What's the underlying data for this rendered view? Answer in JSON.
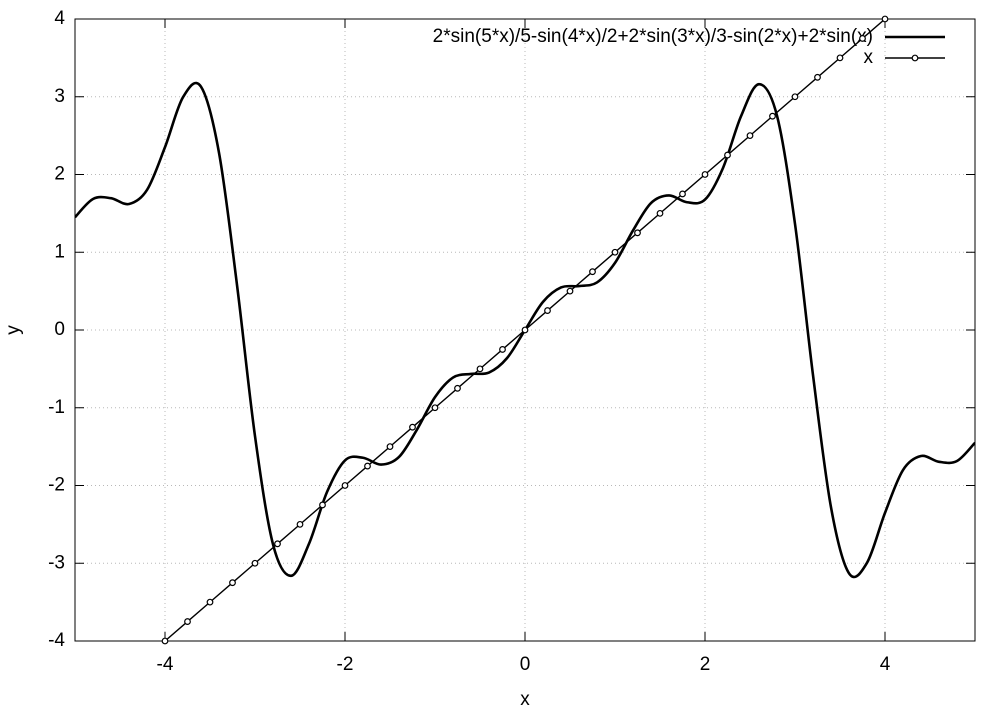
{
  "chart_data": {
    "type": "line",
    "xlabel": "x",
    "ylabel": "y",
    "xlim": [
      -5,
      5
    ],
    "ylim": [
      -4,
      4
    ],
    "xticks": [
      -4,
      -2,
      0,
      2,
      4
    ],
    "yticks": [
      -4,
      -3,
      -2,
      -1,
      0,
      1,
      2,
      3,
      4
    ],
    "grid": true,
    "legend_position": "top right",
    "series": [
      {
        "name": "2*sin(5*x)/5-sin(4*x)/2+2*sin(3*x)/3-sin(2*x)+2*sin(x)",
        "color": "#000000",
        "line_width": 2.6,
        "marker": "none",
        "x": [
          -5,
          -4.8,
          -4.6,
          -4.4,
          -4.2,
          -4,
          -3.8,
          -3.6,
          -3.4,
          -3.2,
          -3,
          -2.8,
          -2.6,
          -2.4,
          -2.2,
          -2,
          -1.8,
          -1.6,
          -1.4,
          -1.2,
          -1,
          -0.8,
          -0.6,
          -0.4,
          -0.2,
          0,
          0.2,
          0.4,
          0.6,
          0.8,
          1,
          1.2,
          1.4,
          1.6,
          1.8,
          2,
          2.2,
          2.4,
          2.6,
          2.8,
          3,
          3.2,
          3.4,
          3.6,
          3.8,
          4,
          4.2,
          4.4,
          4.6,
          4.8,
          5
        ],
        "values": [
          1.45,
          1.685,
          1.695,
          1.621,
          1.801,
          2.352,
          2.994,
          3.129,
          2.28,
          0.58,
          -1.365,
          -2.756,
          -3.162,
          -2.749,
          -2.084,
          -1.677,
          -1.643,
          -1.731,
          -1.633,
          -1.28,
          -0.863,
          -0.612,
          -0.565,
          -0.547,
          -0.362,
          0,
          0.362,
          0.547,
          0.565,
          0.612,
          0.863,
          1.28,
          1.633,
          1.731,
          1.643,
          1.677,
          2.084,
          2.749,
          3.162,
          2.756,
          1.365,
          -0.58,
          -2.28,
          -3.129,
          -2.994,
          -2.352,
          -1.801,
          -1.621,
          -1.695,
          -1.685,
          -1.45
        ]
      },
      {
        "name": "x",
        "color": "#000000",
        "line_width": 1.4,
        "marker": "circle",
        "x": [
          -4,
          -3.75,
          -3.5,
          -3.25,
          -3,
          -2.75,
          -2.5,
          -2.25,
          -2,
          -1.75,
          -1.5,
          -1.25,
          -1,
          -0.75,
          -0.5,
          -0.25,
          0,
          0.25,
          0.5,
          0.75,
          1,
          1.25,
          1.5,
          1.75,
          2,
          2.25,
          2.5,
          2.75,
          3,
          3.25,
          3.5,
          3.75,
          4
        ],
        "values": [
          -4,
          -3.75,
          -3.5,
          -3.25,
          -3,
          -2.75,
          -2.5,
          -2.25,
          -2,
          -1.75,
          -1.5,
          -1.25,
          -1,
          -0.75,
          -0.5,
          -0.25,
          0,
          0.25,
          0.5,
          0.75,
          1,
          1.25,
          1.5,
          1.75,
          2,
          2.25,
          2.5,
          2.75,
          3,
          3.25,
          3.5,
          3.75,
          4
        ]
      }
    ]
  }
}
